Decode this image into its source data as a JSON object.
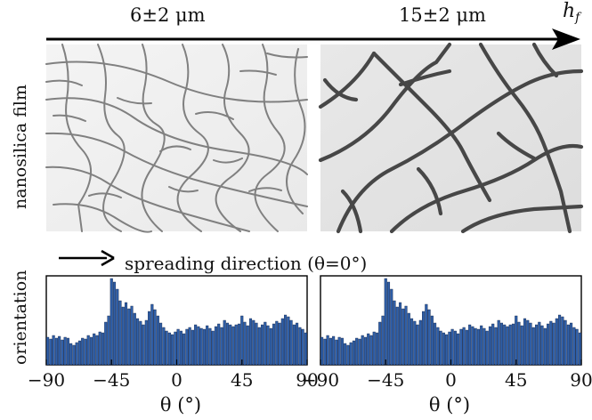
{
  "figure": {
    "top_labels": {
      "left": "6±2 μm",
      "right": "15±2 μm"
    },
    "axis_symbol": "h",
    "axis_subscript": "f",
    "row_label_images": "nanosilica film",
    "row_label_charts": "orientation",
    "spreading_text": "spreading direction (θ=0°)",
    "colors": {
      "bar": "#2f5fa8",
      "bar_edge": "#0d1f44",
      "crack_thin": "#7b7b7b",
      "crack_thick": "#4a4a4a",
      "film_light": "#eeeeee",
      "film_dark": "#e1e1e1"
    }
  },
  "chart_data": [
    {
      "type": "bar",
      "title": "",
      "xlabel": "θ   (°)",
      "ylabel": "orientation",
      "xlim": [
        -90,
        90
      ],
      "ylim": [
        0,
        1
      ],
      "xticks": [
        -90,
        -45,
        0,
        45,
        90
      ],
      "xtick_labels": [
        "−90",
        "−45",
        "0",
        "45",
        "90"
      ],
      "x": [
        -89,
        -87,
        -85,
        -83,
        -81,
        -79,
        -77,
        -75,
        -73,
        -71,
        -69,
        -67,
        -65,
        -63,
        -61,
        -59,
        -57,
        -55,
        -53,
        -51,
        -49,
        -47,
        -45,
        -43,
        -41,
        -39,
        -37,
        -35,
        -33,
        -31,
        -29,
        -27,
        -25,
        -23,
        -21,
        -19,
        -17,
        -15,
        -13,
        -11,
        -9,
        -7,
        -5,
        -3,
        -1,
        1,
        3,
        5,
        7,
        9,
        11,
        13,
        15,
        17,
        19,
        21,
        23,
        25,
        27,
        29,
        31,
        33,
        35,
        37,
        39,
        41,
        43,
        45,
        47,
        49,
        51,
        53,
        55,
        57,
        59,
        61,
        63,
        65,
        67,
        69,
        71,
        73,
        75,
        77,
        79,
        81,
        83,
        85,
        87,
        89
      ],
      "values": [
        0.31,
        0.29,
        0.33,
        0.3,
        0.32,
        0.28,
        0.31,
        0.3,
        0.24,
        0.22,
        0.25,
        0.27,
        0.3,
        0.29,
        0.33,
        0.31,
        0.35,
        0.33,
        0.37,
        0.36,
        0.48,
        0.55,
        0.97,
        0.93,
        0.85,
        0.72,
        0.65,
        0.7,
        0.63,
        0.66,
        0.58,
        0.52,
        0.49,
        0.45,
        0.5,
        0.6,
        0.68,
        0.62,
        0.55,
        0.47,
        0.42,
        0.38,
        0.36,
        0.34,
        0.37,
        0.4,
        0.38,
        0.35,
        0.4,
        0.42,
        0.39,
        0.45,
        0.43,
        0.41,
        0.4,
        0.44,
        0.41,
        0.38,
        0.43,
        0.46,
        0.42,
        0.5,
        0.47,
        0.45,
        0.43,
        0.45,
        0.46,
        0.55,
        0.48,
        0.44,
        0.52,
        0.5,
        0.47,
        0.42,
        0.45,
        0.48,
        0.44,
        0.41,
        0.46,
        0.49,
        0.47,
        0.52,
        0.56,
        0.54,
        0.5,
        0.45,
        0.47,
        0.42,
        0.4,
        0.36
      ]
    },
    {
      "type": "bar",
      "title": "",
      "xlabel": "θ   (°)",
      "ylabel": "",
      "xlim": [
        -90,
        90
      ],
      "ylim": [
        0,
        1
      ],
      "xticks": [
        -90,
        -45,
        0,
        45,
        90
      ],
      "xtick_labels": [
        "−90",
        "−45",
        "0",
        "45",
        "90"
      ],
      "x": [
        -89,
        -87,
        -85,
        -83,
        -81,
        -79,
        -77,
        -75,
        -73,
        -71,
        -69,
        -67,
        -65,
        -63,
        -61,
        -59,
        -57,
        -55,
        -53,
        -51,
        -49,
        -47,
        -45,
        -43,
        -41,
        -39,
        -37,
        -35,
        -33,
        -31,
        -29,
        -27,
        -25,
        -23,
        -21,
        -19,
        -17,
        -15,
        -13,
        -11,
        -9,
        -7,
        -5,
        -3,
        -1,
        1,
        3,
        5,
        7,
        9,
        11,
        13,
        15,
        17,
        19,
        21,
        23,
        25,
        27,
        29,
        31,
        33,
        35,
        37,
        39,
        41,
        43,
        45,
        47,
        49,
        51,
        53,
        55,
        57,
        59,
        61,
        63,
        65,
        67,
        69,
        71,
        73,
        75,
        77,
        79,
        81,
        83,
        85,
        87,
        89
      ],
      "values": [
        0.31,
        0.29,
        0.33,
        0.3,
        0.32,
        0.28,
        0.31,
        0.3,
        0.24,
        0.22,
        0.25,
        0.27,
        0.3,
        0.29,
        0.33,
        0.31,
        0.35,
        0.33,
        0.37,
        0.36,
        0.48,
        0.55,
        0.97,
        0.93,
        0.85,
        0.72,
        0.65,
        0.7,
        0.63,
        0.66,
        0.58,
        0.52,
        0.49,
        0.45,
        0.5,
        0.6,
        0.68,
        0.62,
        0.55,
        0.47,
        0.42,
        0.38,
        0.36,
        0.34,
        0.37,
        0.4,
        0.38,
        0.35,
        0.4,
        0.42,
        0.39,
        0.45,
        0.43,
        0.41,
        0.4,
        0.44,
        0.41,
        0.38,
        0.43,
        0.46,
        0.42,
        0.5,
        0.47,
        0.45,
        0.43,
        0.45,
        0.46,
        0.55,
        0.48,
        0.44,
        0.52,
        0.5,
        0.47,
        0.42,
        0.45,
        0.48,
        0.44,
        0.41,
        0.46,
        0.49,
        0.47,
        0.52,
        0.56,
        0.54,
        0.5,
        0.45,
        0.47,
        0.42,
        0.4,
        0.36
      ]
    }
  ]
}
